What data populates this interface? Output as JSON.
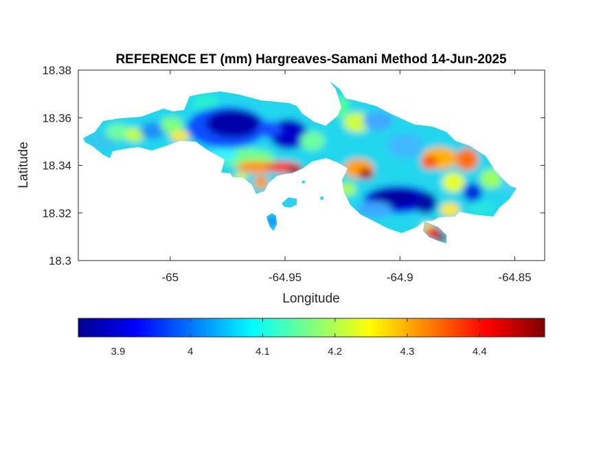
{
  "chart_data": {
    "type": "heatmap",
    "title": "REFERENCE ET (mm) Hargreaves-Samani Method  14-Jun-2025",
    "xlabel": "Longitude",
    "ylabel": "Latitude",
    "xlim": [
      -65.04,
      -64.837
    ],
    "ylim": [
      18.3,
      18.38
    ],
    "xticks": [
      -65,
      -64.95,
      -64.9,
      -64.85
    ],
    "xtick_labels": [
      "-65",
      "-64.95",
      "-64.9",
      "-64.85"
    ],
    "yticks": [
      18.3,
      18.32,
      18.34,
      18.36,
      18.38
    ],
    "ytick_labels": [
      "18.3",
      "18.32",
      "18.34",
      "18.36",
      "18.38"
    ],
    "colormap": "jet",
    "colorbar": {
      "placement": "bottom",
      "clim": [
        3.845,
        4.49
      ],
      "ticks": [
        3.9,
        4.0,
        4.1,
        4.2,
        4.3,
        4.4
      ],
      "tick_labels": [
        "3.9",
        "4",
        "4.1",
        "4.2",
        "4.3",
        "4.4"
      ]
    },
    "value_features": [
      {
        "feature": "low ET center (west)",
        "lon": -64.975,
        "lat": 18.354,
        "value": 3.86
      },
      {
        "feature": "low ET center (west-2)",
        "lon": -64.955,
        "lat": 18.35,
        "value": 3.89
      },
      {
        "feature": "low ET center (south-east)",
        "lon": -64.898,
        "lat": 18.326,
        "value": 3.88
      },
      {
        "feature": "low ET spot (east)",
        "lon": -64.867,
        "lat": 18.329,
        "value": 3.92
      },
      {
        "feature": "high ET spot",
        "lon": -64.95,
        "lat": 18.339,
        "value": 4.48
      },
      {
        "feature": "high ET spot",
        "lon": -64.911,
        "lat": 18.336,
        "value": 4.47
      },
      {
        "feature": "high ET spot",
        "lon": -64.878,
        "lat": 18.312,
        "value": 4.45
      },
      {
        "feature": "high ET spot",
        "lon": -64.885,
        "lat": 18.341,
        "value": 4.32
      },
      {
        "feature": "high ET spot",
        "lon": -64.868,
        "lat": 18.342,
        "value": 4.34
      },
      {
        "feature": "high ET spot",
        "lon": -64.962,
        "lat": 18.339,
        "value": 4.33
      },
      {
        "feature": "high ET spot",
        "lon": -64.958,
        "lat": 18.333,
        "value": 4.3
      }
    ],
    "grid": false,
    "box": true
  }
}
